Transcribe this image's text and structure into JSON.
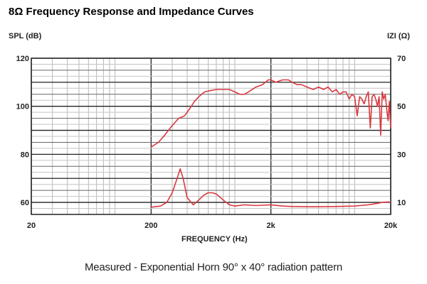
{
  "chart_data": {
    "type": "line",
    "title": "8Ω Frequency Response and Impedance Curves",
    "left_axis_label": "SPL (dB)",
    "right_axis_label": "IZI (Ω)",
    "xlabel": "FREQUENCY (Hz)",
    "caption": "Measured - Exponential Horn 90° x 40° radiation pattern",
    "xscale": "log",
    "xlim": [
      20,
      20000
    ],
    "ylim": [
      55,
      120
    ],
    "y2lim": [
      5,
      70
    ],
    "x_tick_labels": [
      {
        "value": 20,
        "label": "20"
      },
      {
        "value": 200,
        "label": "200"
      },
      {
        "value": 2000,
        "label": "2k"
      },
      {
        "value": 20000,
        "label": "20k"
      }
    ],
    "y_tick_labels": [
      {
        "value": 120,
        "label": "120"
      },
      {
        "value": 100,
        "label": "100"
      },
      {
        "value": 80,
        "label": "80"
      },
      {
        "value": 60,
        "label": "60"
      }
    ],
    "y2_tick_labels": [
      {
        "value": 70,
        "label": "70"
      },
      {
        "value": 50,
        "label": "50"
      },
      {
        "value": 30,
        "label": "30"
      },
      {
        "value": 10,
        "label": "10"
      }
    ],
    "grid": true,
    "line_color": "#d9393f",
    "series": [
      {
        "axis": "left",
        "x": [
          200,
          230,
          260,
          300,
          340,
          380,
          420,
          460,
          500,
          560,
          620,
          700,
          800,
          900,
          1000,
          1100,
          1200,
          1300,
          1500,
          1700,
          1900,
          2000,
          2200,
          2500,
          2800,
          3000,
          3300,
          3600,
          4000,
          4500,
          5000,
          5500,
          6000,
          6500,
          7000,
          7500,
          8000,
          8500,
          9000,
          9500,
          10000,
          10500,
          11000,
          11500,
          12000,
          12500,
          13000,
          13500,
          14000,
          14500,
          15000,
          15500,
          16000,
          16500,
          17000,
          17500,
          18000,
          18500,
          19000,
          19500,
          20000
        ],
        "y": [
          83,
          85,
          88,
          92,
          95,
          96,
          99,
          102,
          104,
          106,
          106.5,
          107,
          107,
          107,
          106,
          105,
          105,
          106,
          108,
          109,
          111,
          111,
          110,
          111,
          111,
          110,
          109,
          109,
          108,
          107,
          108,
          107,
          108,
          106,
          107,
          105,
          106,
          106,
          103,
          105,
          104,
          96,
          104,
          103,
          101,
          104,
          106,
          91,
          104,
          105,
          103,
          100,
          104,
          88,
          106,
          103,
          105,
          99,
          94,
          102,
          91
        ]
      },
      {
        "axis": "right",
        "x": [
          200,
          240,
          270,
          300,
          330,
          350,
          370,
          400,
          450,
          500,
          550,
          600,
          650,
          700,
          800,
          900,
          1000,
          1200,
          1500,
          2000,
          2500,
          3000,
          4000,
          5000,
          7000,
          10000,
          13000,
          15000,
          17000,
          19000,
          20000
        ],
        "y": [
          8,
          8.5,
          10,
          14,
          20,
          24,
          20,
          12,
          9,
          11,
          13,
          14,
          14,
          13.5,
          11,
          9,
          8.5,
          9,
          8.7,
          9,
          8.5,
          8.3,
          8.2,
          8.2,
          8.3,
          8.5,
          9,
          9.5,
          10,
          10.2,
          10
        ]
      }
    ]
  }
}
